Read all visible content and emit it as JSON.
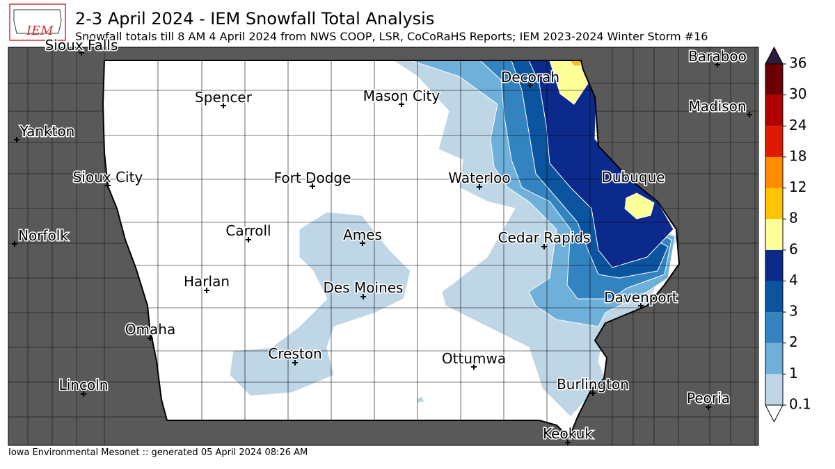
{
  "header": {
    "logo": "IEM",
    "title": "2-3 April 2024 - IEM Snowfall Total Analysis",
    "subtitle": "Snowfall totals till 8 AM 4 April 2024 from NWS COOP, LSR, CoCoRaHS Reports; IEM 2023-2024 Winter Storm #16"
  },
  "cities": [
    {
      "label": "Sioux Falls"
    },
    {
      "label": "Spencer"
    },
    {
      "label": "Mason City"
    },
    {
      "label": "Decorah"
    },
    {
      "label": "Baraboo"
    },
    {
      "label": "Madison"
    },
    {
      "label": "Yankton"
    },
    {
      "label": "Sioux City"
    },
    {
      "label": "Fort Dodge"
    },
    {
      "label": "Waterloo"
    },
    {
      "label": "Dubuque"
    },
    {
      "label": "Norfolk"
    },
    {
      "label": "Carroll"
    },
    {
      "label": "Ames"
    },
    {
      "label": "Cedar Rapids"
    },
    {
      "label": "Harlan"
    },
    {
      "label": "Des Moines"
    },
    {
      "label": "Davenport"
    },
    {
      "label": "Omaha"
    },
    {
      "label": "Creston"
    },
    {
      "label": "Ottumwa"
    },
    {
      "label": "Lincoln"
    },
    {
      "label": "Burlington"
    },
    {
      "label": "Peoria"
    },
    {
      "label": "Keokuk"
    }
  ],
  "legend": {
    "ticks": [
      0.1,
      1,
      2,
      3,
      4,
      6,
      8,
      12,
      18,
      24,
      30,
      36
    ],
    "colors": [
      "#bed6e6",
      "#6eb0da",
      "#3283c0",
      "#0b55a0",
      "#0c2a8c",
      "#ffff98",
      "#ffc400",
      "#ff8b00",
      "#e01a00",
      "#b00000",
      "#6a0000"
    ],
    "over_color": "#2e1a3c",
    "under_color": "#ffffff"
  },
  "footer": "Iowa Environmental Mesonet :: generated 05 April 2024 08:26 AM"
}
